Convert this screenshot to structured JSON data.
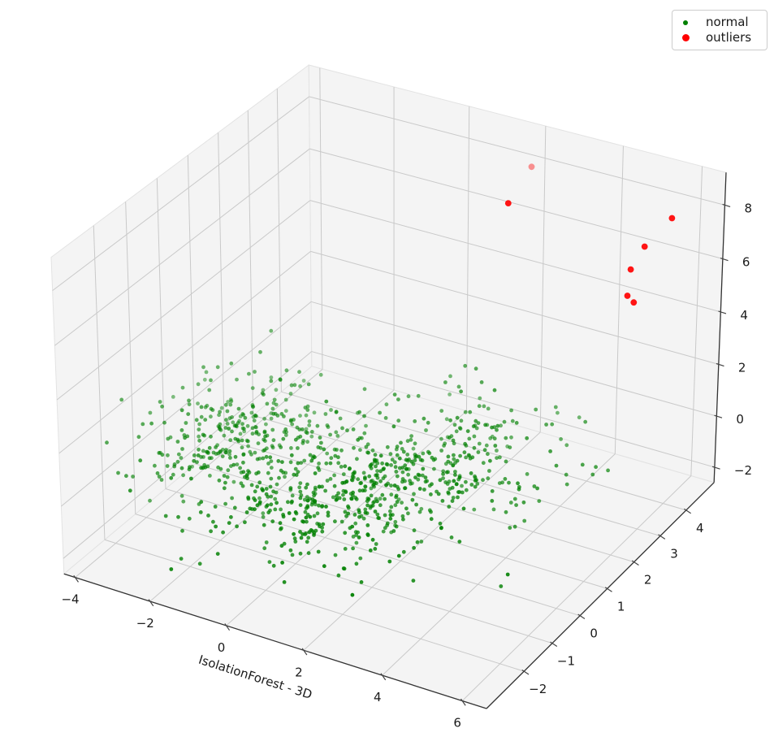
{
  "legend": {
    "items": [
      {
        "label": "normal",
        "color": "#008000"
      },
      {
        "label": "outliers",
        "color": "#ff0000"
      }
    ]
  },
  "chart_data": {
    "type": "scatter",
    "projection": "3d",
    "xlabel": "IsolationForest - 3D",
    "xlim": [
      -4.3,
      6.6
    ],
    "ylim": [
      -3.3,
      5.1
    ],
    "zlim": [
      -2.6,
      9.2
    ],
    "xticks": [
      -4,
      -2,
      0,
      2,
      4,
      6
    ],
    "yticks": [
      -2,
      -1,
      0,
      1,
      2,
      3,
      4
    ],
    "zticks": [
      -2,
      0,
      2,
      4,
      6,
      8
    ],
    "grid": true,
    "legend_position": "upper right",
    "view": {
      "elev": 30,
      "azim": -60,
      "dist": 10,
      "box_aspect": [
        1,
        1,
        0.75
      ]
    },
    "series": [
      {
        "name": "normal",
        "color": "#008000",
        "marker_radius_px": 2.4,
        "n_points": 1000,
        "generator": {
          "seed": 13,
          "clusters": [
            {
              "center": [
                -2.6,
                0.2,
                -0.2
              ],
              "std": [
                1.0,
                1.0,
                0.75
              ],
              "n": 320
            },
            {
              "center": [
                0.4,
                -0.3,
                -0.5
              ],
              "std": [
                1.15,
                1.05,
                0.75
              ],
              "n": 380
            },
            {
              "center": [
                2.3,
                1.4,
                -0.1
              ],
              "std": [
                1.15,
                1.1,
                0.8
              ],
              "n": 300
            }
          ]
        }
      },
      {
        "name": "outliers",
        "color": "#ff0000",
        "marker_radius_px": 3.9,
        "points": [
          {
            "x": 2.0,
            "y": 4.6,
            "z": 8.1,
            "alpha": 0.45
          },
          {
            "x": 1.9,
            "y": 3.9,
            "z": 7.3,
            "alpha": 1
          },
          {
            "x": 5.8,
            "y": 4.3,
            "z": 7.9,
            "alpha": 1
          },
          {
            "x": 5.2,
            "y": 4.2,
            "z": 6.7,
            "alpha": 1
          },
          {
            "x": 4.8,
            "y": 4.3,
            "z": 5.6,
            "alpha": 1
          },
          {
            "x": 4.8,
            "y": 4.2,
            "z": 4.7,
            "alpha": 1
          },
          {
            "x": 4.9,
            "y": 4.3,
            "z": 4.4,
            "alpha": 1
          }
        ]
      }
    ],
    "colors": {
      "pane": "#f4f4f4",
      "pane_edge": "#e3e3e3",
      "grid": "#c9c9c9",
      "axis_line": "#333333",
      "tick": "#444444",
      "text": "#1a1a1a",
      "background": "#ffffff"
    }
  }
}
